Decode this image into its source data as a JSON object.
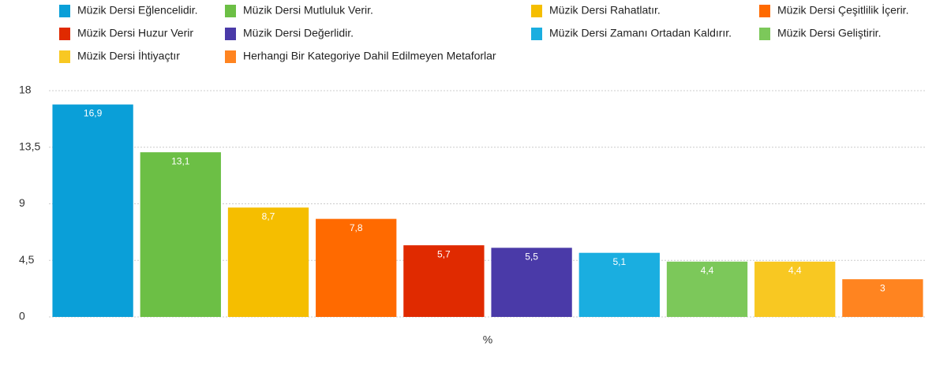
{
  "chart_data": {
    "type": "bar",
    "x_label": "%",
    "ylim": [
      0,
      18
    ],
    "yticks": [
      0,
      {
        "value": 4.5,
        "label": "4,5"
      },
      9,
      {
        "value": 13.5,
        "label": "13,5"
      },
      18
    ],
    "grid": true,
    "series": [
      {
        "name": "Müzik Dersi Eğlencelidir.",
        "color": "#0a9fd8",
        "values": [
          16.9
        ],
        "value_labels": [
          "16,9"
        ]
      },
      {
        "name": "Müzik Dersi Mutluluk Verir.",
        "color": "#6cbf45",
        "values": [
          13.1
        ],
        "value_labels": [
          "13,1"
        ]
      },
      {
        "name": "Müzik Dersi Rahatlatır.",
        "color": "#f5be00",
        "values": [
          8.7
        ],
        "value_labels": [
          "8,7"
        ]
      },
      {
        "name": "Müzik Dersi Çeşitlilik İçerir.",
        "color": "#ff6a00",
        "values": [
          7.8
        ],
        "value_labels": [
          "7,8"
        ]
      },
      {
        "name": "Müzik Dersi Huzur Verir",
        "color": "#e02a00",
        "values": [
          5.7
        ],
        "value_labels": [
          "5,7"
        ]
      },
      {
        "name": "Müzik Dersi Değerlidir.",
        "color": "#4a3aa8",
        "values": [
          5.5
        ],
        "value_labels": [
          "5,5"
        ]
      },
      {
        "name": "Müzik Dersi Zamanı Ortadan Kaldırır.",
        "color": "#1aaee0",
        "values": [
          5.1
        ],
        "value_labels": [
          "5,1"
        ]
      },
      {
        "name": "Müzik Dersi Geliştirir.",
        "color": "#7cc85a",
        "values": [
          4.4
        ],
        "value_labels": [
          "4,4"
        ]
      },
      {
        "name": "Müzik Dersi İhtiyaçtır",
        "color": "#f8c822",
        "values": [
          4.4
        ],
        "value_labels": [
          "4,4"
        ]
      },
      {
        "name": "Herhangi Bir Kategoriye Dahil Edilmeyen Metaforlar",
        "color": "#ff8420",
        "values": [
          3
        ],
        "value_labels": [
          "3"
        ]
      }
    ]
  }
}
